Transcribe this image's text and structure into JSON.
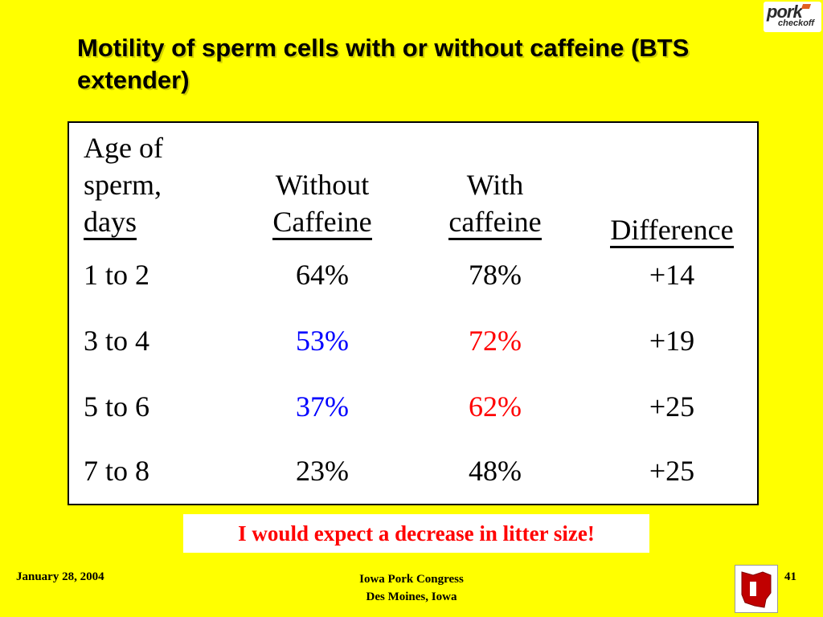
{
  "title": "Motility of sperm cells with or without caffeine (BTS extender)",
  "logo": {
    "line1": "pork",
    "line2": "checkoff"
  },
  "table": {
    "headers": {
      "age_line1": "Age of",
      "age_line2": "sperm,",
      "age_line3": "days",
      "without_line1": "Without",
      "without_line2": "Caffeine",
      "with_line1": "With",
      "with_line2": "caffeine",
      "difference": "Difference"
    },
    "rows": [
      {
        "age": "1 to 2",
        "without": "64%",
        "with": "78%",
        "difference": "+14"
      },
      {
        "age": "3 to 4",
        "without": "53%",
        "with": "72%",
        "difference": "+19"
      },
      {
        "age": "5 to 6",
        "without": "37%",
        "with": "62%",
        "difference": "+25"
      },
      {
        "age": "7 to 8",
        "without": "23%",
        "with": "48%",
        "difference": "+25"
      }
    ],
    "highlight_colors": {
      "without": "#0000FF",
      "with": "#FF0000"
    }
  },
  "callout": "I would expect a decrease in litter size!",
  "footer": {
    "date": "January 28, 2004",
    "event_line1": "Iowa Pork Congress",
    "event_line2": "Des Moines, Iowa",
    "page": "41"
  },
  "background_color": "#FFFF00"
}
